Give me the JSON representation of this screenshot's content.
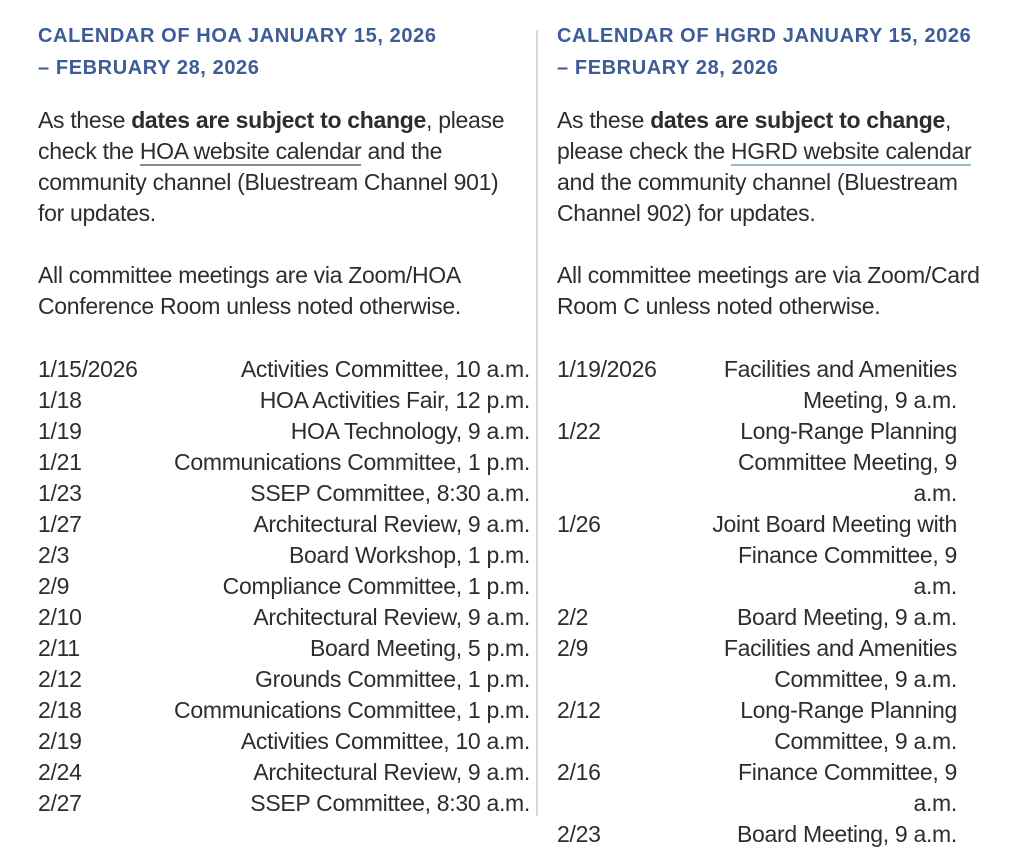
{
  "page": {
    "background_color": "#ffffff",
    "heading_color": "#3d5c97",
    "body_color": "#2d2d2d",
    "divider_color": "#c9dde2"
  },
  "columns": [
    {
      "org": "HOA",
      "heading_line1": "CALENDAR OF HOA JANUARY 15, 2026",
      "heading_line2": "– FEBRUARY 28, 2026",
      "intro_pre": "As these ",
      "intro_bold": "dates are subject to change",
      "intro_mid": ", please check the ",
      "intro_link": "HOA website calendar",
      "intro_post": " and the community channel (Bluestream Channel 901) for updates.",
      "link_underline_color": "#8a8a8a",
      "note": "All committee meetings are via Zoom/HOA Conference Room unless noted otherwise.",
      "events": [
        {
          "date": "1/15/2026",
          "event": "Activities Committee, 10 a.m."
        },
        {
          "date": "1/18",
          "event": "HOA Activities Fair, 12 p.m."
        },
        {
          "date": "1/19",
          "event": "HOA Technology, 9 a.m."
        },
        {
          "date": "1/21",
          "event": "Communications Committee, 1 p.m."
        },
        {
          "date": "1/23",
          "event": "SSEP Committee, 8:30 a.m."
        },
        {
          "date": "1/27",
          "event": "Architectural Review, 9 a.m."
        },
        {
          "date": "2/3",
          "event": "Board Workshop, 1 p.m."
        },
        {
          "date": "2/9",
          "event": "Compliance Committee, 1 p.m."
        },
        {
          "date": "2/10",
          "event": "Architectural Review, 9 a.m."
        },
        {
          "date": "2/11",
          "event": "Board Meeting, 5 p.m."
        },
        {
          "date": "2/12",
          "event": "Grounds Committee, 1 p.m."
        },
        {
          "date": "2/18",
          "event": "Communications Committee, 1 p.m."
        },
        {
          "date": "2/19",
          "event": "Activities Committee, 10 a.m."
        },
        {
          "date": "2/24",
          "event": "Architectural Review, 9 a.m."
        },
        {
          "date": "2/27",
          "event": "SSEP Committee, 8:30 a.m."
        }
      ]
    },
    {
      "org": "HGRD",
      "heading_line1": "CALENDAR OF HGRD JANUARY 15, 2026",
      "heading_line2": "– FEBRUARY 28, 2026",
      "intro_pre": "As these ",
      "intro_bold": "dates are subject to change",
      "intro_mid": ", please check the ",
      "intro_link": "HGRD website calendar",
      "intro_post": " and the community channel (Bluestream Channel 902) for updates.",
      "link_underline_color": "#96bdc9",
      "note": "All committee meetings are via Zoom/Card Room C unless noted otherwise.",
      "events": [
        {
          "date": "1/19/2026",
          "event": "Facilities and Amenities\nMeeting, 9 a.m."
        },
        {
          "date": "1/22",
          "event": "Long-Range Planning\nCommittee Meeting, 9 a.m."
        },
        {
          "date": "1/26",
          "event": "Joint Board Meeting with\nFinance Committee, 9 a.m."
        },
        {
          "date": "2/2",
          "event": "Board Meeting, 9 a.m."
        },
        {
          "date": "2/9",
          "event": "Facilities and Amenities\nCommittee, 9 a.m."
        },
        {
          "date": "2/12",
          "event": "Long-Range Planning\nCommittee, 9 a.m."
        },
        {
          "date": "2/16",
          "event": "Finance Committee, 9 a.m."
        },
        {
          "date": "2/23",
          "event": "Board Meeting, 9 a.m."
        }
      ]
    }
  ]
}
